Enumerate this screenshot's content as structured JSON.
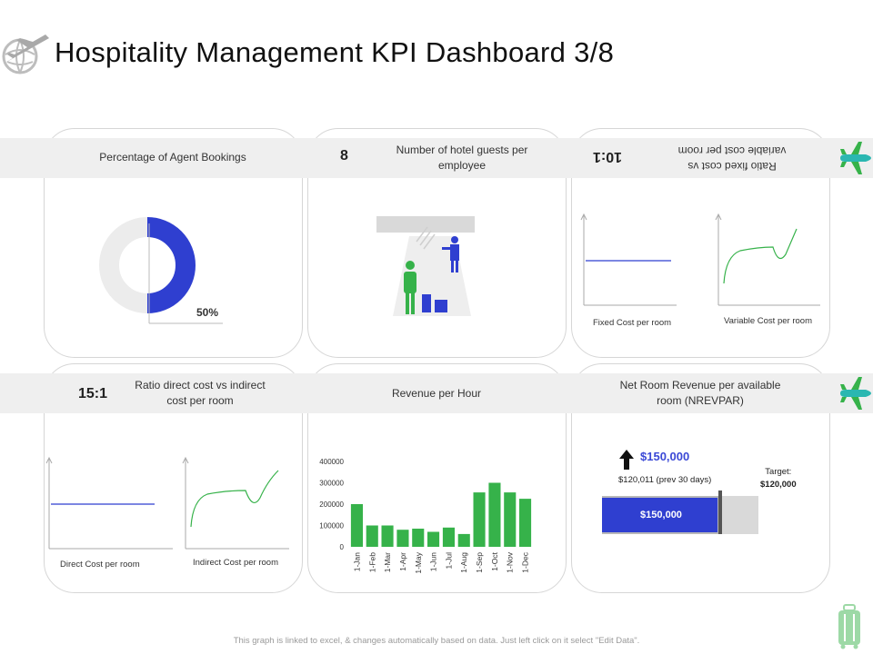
{
  "page": {
    "title": "Hospitality Management KPI Dashboard 3/8",
    "footer": "This graph is linked to excel, & changes automatically based on data. Just left click on it select \"Edit Data\"."
  },
  "colors": {
    "blue": "#2f3fd0",
    "green": "#36b24a",
    "band": "#efefef",
    "grey": "#e6e6e6",
    "teal": "#2bb7b1"
  },
  "kpi": {
    "agent_bookings": {
      "label": "Percentage of Agent Bookings",
      "value": "50%",
      "percent": 50
    },
    "guests_per_employee": {
      "label": "Number of hotel guests per employee",
      "value": "8"
    },
    "fixed_vs_variable": {
      "label": "Ratio fixed cost vs variable cost per room",
      "value": "10:1",
      "left_chart": "Fixed Cost per room",
      "right_chart": "Variable Cost per room"
    },
    "direct_vs_indirect": {
      "label": "Ratio direct cost vs indirect cost per room",
      "value": "15:1",
      "left_chart": "Direct Cost per room",
      "right_chart": "Indirect Cost per room"
    },
    "revenue_per_hour": {
      "label": "Revenue per Hour"
    },
    "nrevpar": {
      "label": "Net Room Revenue per available room (NREVPAR)",
      "value": "$150,000",
      "prev": "$120,011 (prev 30 days)",
      "target_label": "Target:",
      "target_value": "$120,000",
      "bar_label": "$150,000",
      "bar_fraction": 0.74
    }
  },
  "chart_data": {
    "type": "bar",
    "categories": [
      "1-Jan",
      "1-Feb",
      "1-Mar",
      "1-Apr",
      "1-May",
      "1-Jun",
      "1-Jul",
      "1-Aug",
      "1-Sep",
      "1-Oct",
      "1-Nov",
      "1-Dec"
    ],
    "values": [
      200000,
      100000,
      100000,
      80000,
      85000,
      70000,
      90000,
      60000,
      255000,
      300000,
      255000,
      225000
    ],
    "ylim": [
      0,
      400000
    ],
    "yticks": [
      "0",
      "100000",
      "200000",
      "300000",
      "400000"
    ],
    "title": "",
    "xlabel": "",
    "ylabel": ""
  }
}
